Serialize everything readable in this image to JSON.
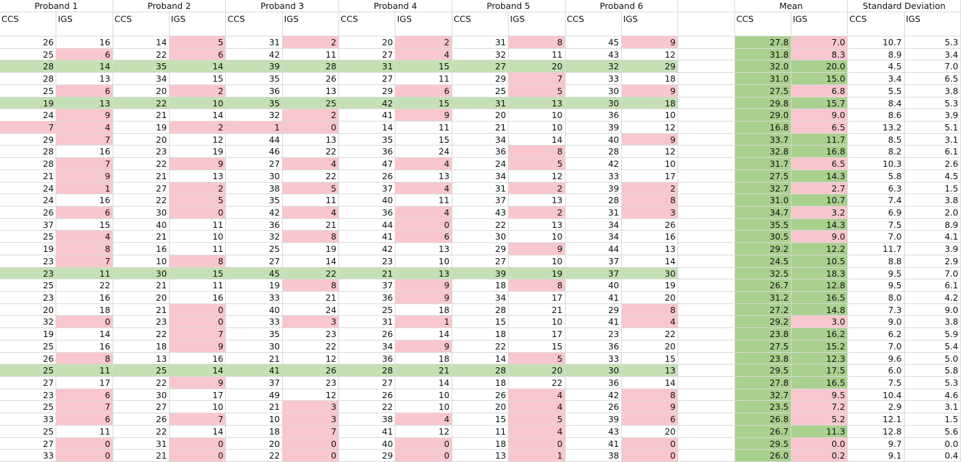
{
  "sheet": {
    "groups": [
      "Proband 1",
      "Proband 2",
      "Proband 3",
      "Proband 4",
      "Proband 5",
      "Proband 6",
      "Mean",
      "Standard Deviation"
    ],
    "subheaders": [
      "CCS",
      "IGS"
    ],
    "threshold": 10,
    "rows": [
      [
        26,
        16,
        14,
        5,
        31,
        2,
        20,
        2,
        31,
        8,
        45,
        9,
        "27.8",
        "7.0",
        "10.7",
        "5.3"
      ],
      [
        25,
        6,
        22,
        6,
        42,
        11,
        27,
        4,
        32,
        11,
        43,
        12,
        "31.8",
        "8.3",
        "8.9",
        "3.4"
      ],
      [
        28,
        14,
        35,
        14,
        39,
        28,
        31,
        15,
        27,
        20,
        32,
        29,
        "32.0",
        "20.0",
        "4.5",
        "7.0"
      ],
      [
        28,
        13,
        34,
        15,
        35,
        26,
        27,
        11,
        29,
        7,
        33,
        18,
        "31.0",
        "15.0",
        "3.4",
        "6.5"
      ],
      [
        25,
        6,
        20,
        2,
        36,
        13,
        29,
        6,
        25,
        5,
        30,
        9,
        "27.5",
        "6.8",
        "5.5",
        "3.8"
      ],
      [
        19,
        13,
        22,
        10,
        35,
        25,
        42,
        15,
        31,
        13,
        30,
        18,
        "29.8",
        "15.7",
        "8.4",
        "5.3"
      ],
      [
        24,
        9,
        21,
        14,
        32,
        2,
        41,
        9,
        20,
        10,
        36,
        10,
        "29.0",
        "9.0",
        "8.6",
        "3.9"
      ],
      [
        7,
        4,
        19,
        2,
        1,
        0,
        14,
        11,
        21,
        10,
        39,
        12,
        "16.8",
        "6.5",
        "13.2",
        "5.1"
      ],
      [
        29,
        7,
        20,
        12,
        44,
        13,
        35,
        15,
        34,
        14,
        40,
        9,
        "33.7",
        "11.7",
        "8.5",
        "3.1"
      ],
      [
        28,
        16,
        23,
        19,
        46,
        22,
        36,
        24,
        36,
        8,
        28,
        12,
        "32.8",
        "16.8",
        "8.2",
        "6.1"
      ],
      [
        28,
        7,
        22,
        9,
        27,
        4,
        47,
        4,
        24,
        5,
        42,
        10,
        "31.7",
        "6.5",
        "10.3",
        "2.6"
      ],
      [
        21,
        9,
        21,
        13,
        30,
        22,
        26,
        13,
        34,
        12,
        33,
        17,
        "27.5",
        "14.3",
        "5.8",
        "4.5"
      ],
      [
        24,
        1,
        27,
        2,
        38,
        5,
        37,
        4,
        31,
        2,
        39,
        2,
        "32.7",
        "2.7",
        "6.3",
        "1.5"
      ],
      [
        24,
        16,
        22,
        5,
        35,
        11,
        40,
        11,
        37,
        13,
        28,
        8,
        "31.0",
        "10.7",
        "7.4",
        "3.8"
      ],
      [
        26,
        6,
        30,
        0,
        42,
        4,
        36,
        4,
        43,
        2,
        31,
        3,
        "34.7",
        "3.2",
        "6.9",
        "2.0"
      ],
      [
        37,
        15,
        40,
        11,
        36,
        21,
        44,
        0,
        22,
        13,
        34,
        26,
        "35.5",
        "14.3",
        "7.5",
        "8.9"
      ],
      [
        25,
        4,
        21,
        10,
        32,
        8,
        41,
        6,
        30,
        10,
        34,
        16,
        "30.5",
        "9.0",
        "7.0",
        "4.1"
      ],
      [
        19,
        8,
        16,
        11,
        25,
        19,
        42,
        13,
        29,
        9,
        44,
        13,
        "29.2",
        "12.2",
        "11.7",
        "3.9"
      ],
      [
        23,
        7,
        10,
        8,
        27,
        14,
        23,
        10,
        27,
        10,
        37,
        14,
        "24.5",
        "10.5",
        "8.8",
        "2.9"
      ],
      [
        23,
        11,
        30,
        15,
        45,
        22,
        21,
        13,
        39,
        19,
        37,
        30,
        "32.5",
        "18.3",
        "9.5",
        "7.0"
      ],
      [
        25,
        22,
        21,
        11,
        19,
        8,
        37,
        9,
        18,
        8,
        40,
        19,
        "26.7",
        "12.8",
        "9.5",
        "6.1"
      ],
      [
        23,
        16,
        20,
        16,
        33,
        21,
        36,
        9,
        34,
        17,
        41,
        20,
        "31.2",
        "16.5",
        "8.0",
        "4.2"
      ],
      [
        20,
        18,
        21,
        0,
        40,
        24,
        25,
        18,
        28,
        21,
        29,
        8,
        "27.2",
        "14.8",
        "7.3",
        "9.0"
      ],
      [
        32,
        0,
        23,
        0,
        33,
        3,
        31,
        1,
        15,
        10,
        41,
        4,
        "29.2",
        "3.0",
        "9.0",
        "3.8"
      ],
      [
        19,
        14,
        22,
        7,
        35,
        23,
        26,
        14,
        18,
        17,
        23,
        22,
        "23.8",
        "16.2",
        "6.2",
        "5.9"
      ],
      [
        25,
        16,
        18,
        9,
        30,
        22,
        34,
        9,
        22,
        15,
        36,
        20,
        "27.5",
        "15.2",
        "7.0",
        "5.4"
      ],
      [
        26,
        8,
        13,
        16,
        21,
        12,
        36,
        18,
        14,
        5,
        33,
        15,
        "23.8",
        "12.3",
        "9.6",
        "5.0"
      ],
      [
        25,
        11,
        25,
        14,
        41,
        26,
        28,
        21,
        28,
        20,
        30,
        13,
        "29.5",
        "17.5",
        "6.0",
        "5.8"
      ],
      [
        27,
        17,
        22,
        9,
        37,
        23,
        27,
        14,
        18,
        22,
        36,
        14,
        "27.8",
        "16.5",
        "7.5",
        "5.3"
      ],
      [
        23,
        6,
        30,
        17,
        49,
        12,
        26,
        10,
        26,
        4,
        42,
        8,
        "32.7",
        "9.5",
        "10.4",
        "4.6"
      ],
      [
        25,
        7,
        27,
        10,
        21,
        3,
        22,
        10,
        20,
        4,
        26,
        9,
        "23.5",
        "7.2",
        "2.9",
        "3.1"
      ],
      [
        33,
        6,
        26,
        7,
        10,
        3,
        38,
        4,
        15,
        5,
        39,
        6,
        "26.8",
        "5.2",
        "12.1",
        "1.5"
      ],
      [
        25,
        11,
        22,
        14,
        18,
        7,
        41,
        12,
        11,
        4,
        43,
        20,
        "26.7",
        "11.3",
        "12.8",
        "5.6"
      ],
      [
        27,
        0,
        31,
        0,
        20,
        0,
        40,
        0,
        18,
        0,
        41,
        0,
        "29.5",
        "0.0",
        "9.7",
        "0.0"
      ],
      [
        33,
        0,
        21,
        0,
        22,
        0,
        29,
        0,
        13,
        1,
        38,
        0,
        "26.0",
        "0.2",
        "9.1",
        "0.4"
      ]
    ]
  }
}
